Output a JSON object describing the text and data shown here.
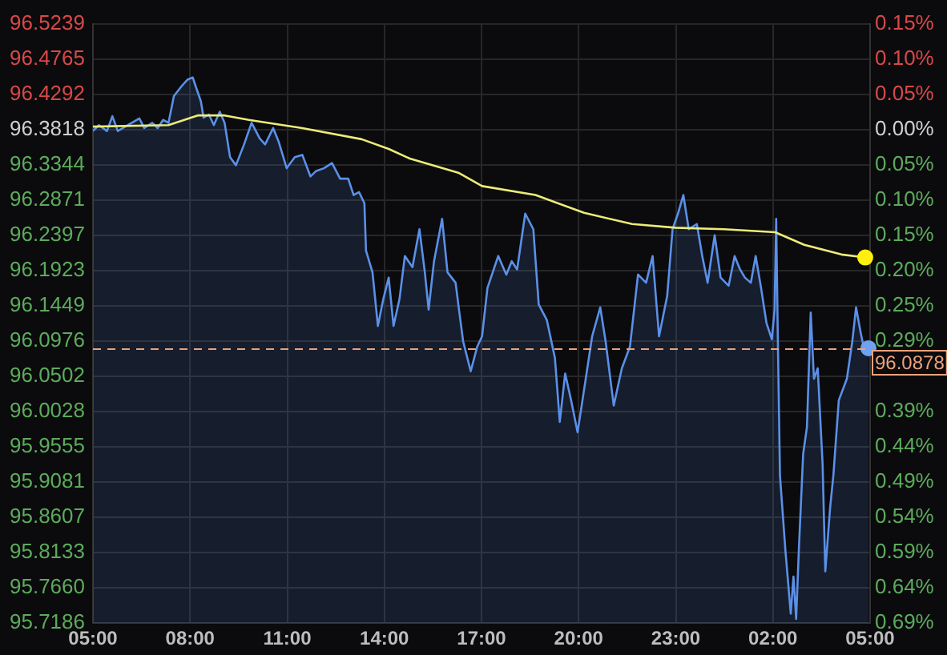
{
  "chart_data": {
    "type": "line",
    "series": [
      {
        "type": "area",
        "color": "#5b90e8",
        "x": [
          "--01-01T05:00",
          "--01-01T05:11",
          "--01-01T05:26",
          "--01-01T05:36",
          "--01-01T05:46",
          "--01-01T06:05",
          "--01-01T06:26",
          "--01-01T06:35",
          "--01-01T06:50",
          "--01-01T07:00",
          "--01-01T07:10",
          "--01-01T07:20",
          "--01-01T07:30",
          "--01-01T07:45",
          "--01-01T07:55",
          "--01-01T08:05",
          "--01-01T08:10",
          "--01-01T08:20",
          "--01-01T08:25",
          "--01-01T08:35",
          "--01-01T08:44",
          "--01-01T08:55",
          "--01-01T09:04",
          "--01-01T09:14",
          "--01-01T09:25",
          "--01-01T09:40",
          "--01-01T09:54",
          "--01-01T10:09",
          "--01-01T10:19",
          "--01-01T10:34",
          "--01-01T10:44",
          "--01-01T10:59",
          "--01-01T11:14",
          "--01-01T11:28",
          "--01-01T11:43",
          "--01-01T11:53",
          "--01-01T12:08",
          "--01-01T12:23",
          "--01-01T12:38",
          "--01-01T12:53",
          "--01-01T13:03",
          "--01-01T13:13",
          "--01-01T13:23",
          "--01-01T13:26",
          "--01-01T13:38",
          "--01-01T13:48",
          "--01-01T13:58",
          "--01-01T14:08",
          "--01-01T14:17",
          "--01-01T14:28",
          "--01-01T14:38",
          "--01-01T14:52",
          "--01-01T15:05",
          "--01-01T15:15",
          "--01-01T15:22",
          "--01-01T15:32",
          "--01-01T15:47",
          "--01-01T15:57",
          "--01-01T16:12",
          "--01-01T16:17",
          "--01-01T16:26",
          "--01-01T16:40",
          "--01-01T16:52",
          "--01-01T17:01",
          "--01-01T17:11",
          "--01-01T17:31",
          "--01-01T17:46",
          "--01-01T17:56",
          "--01-01T18:06",
          "--01-01T18:21",
          "--01-01T18:36",
          "--01-01T18:46",
          "--01-01T19:01",
          "--01-01T19:16",
          "--01-01T19:25",
          "--01-01T19:35",
          "--01-01T19:46",
          "--01-01T19:58",
          "--01-01T20:10",
          "--01-01T20:25",
          "--01-01T20:40",
          "--01-01T20:50",
          "--01-01T21:05",
          "--01-01T21:20",
          "--01-01T21:35",
          "--01-01T21:50",
          "--01-01T22:05",
          "--01-01T22:17",
          "--01-01T22:29",
          "--01-01T22:44",
          "--01-01T22:54",
          "--01-01T23:04",
          "--01-01T23:14",
          "--01-01T23:24",
          "--01-01T23:39",
          "--01-01T23:49",
          "--01-01T23:59",
          "--01-02T00:12",
          "--01-02T00:23",
          "--01-02T00:38",
          "--01-02T00:49",
          "--01-02T00:59",
          "--01-02T01:08",
          "--01-02T01:19",
          "--01-02T01:28",
          "--01-02T01:38",
          "--01-02T01:48",
          "--01-02T01:58",
          "--01-02T02:03",
          "--01-02T02:06",
          "--01-02T02:09",
          "--01-02T02:13",
          "--01-02T02:23",
          "--01-02T02:33",
          "--01-02T02:38",
          "--01-02T02:43",
          "--01-02T02:48",
          "--01-02T02:56",
          "--01-02T03:03",
          "--01-02T03:10",
          "--01-02T03:16",
          "--01-02T03:23",
          "--01-02T03:32",
          "--01-02T03:37",
          "--01-02T03:46",
          "--01-02T03:52",
          "--01-02T04:02",
          "--01-02T04:17",
          "--01-02T04:27",
          "--01-02T04:34",
          "--01-02T04:42",
          "--01-02T04:49",
          "--01-02T04:57"
        ],
        "values": [
          96.38,
          96.388,
          96.38,
          96.4,
          96.38,
          96.388,
          96.397,
          96.384,
          96.391,
          96.384,
          96.395,
          96.391,
          96.427,
          96.441,
          96.449,
          96.452,
          96.441,
          96.42,
          96.398,
          96.402,
          96.388,
          96.406,
          96.391,
          96.345,
          96.334,
          96.362,
          96.391,
          96.37,
          96.362,
          96.384,
          96.366,
          96.33,
          96.345,
          96.348,
          96.319,
          96.326,
          96.33,
          96.337,
          96.316,
          96.316,
          96.294,
          96.298,
          96.283,
          96.219,
          96.19,
          96.118,
          96.154,
          96.183,
          96.118,
          96.154,
          96.212,
          96.197,
          96.248,
          96.19,
          96.14,
          96.205,
          96.262,
          96.19,
          96.176,
          96.147,
          96.097,
          96.057,
          96.09,
          96.104,
          96.169,
          96.212,
          96.187,
          96.205,
          96.194,
          96.269,
          96.248,
          96.147,
          96.126,
          96.075,
          95.989,
          96.054,
          96.018,
          95.975,
          96.032,
          96.104,
          96.143,
          96.097,
          96.011,
          96.061,
          96.09,
          96.187,
          96.176,
          96.212,
          96.104,
          96.158,
          96.248,
          96.269,
          96.294,
          96.248,
          96.255,
          96.212,
          96.176,
          96.24,
          96.183,
          96.172,
          96.212,
          96.194,
          96.183,
          96.176,
          96.212,
          96.169,
          96.122,
          96.1,
          96.14,
          96.262,
          96.104,
          95.917,
          95.817,
          95.731,
          95.781,
          95.724,
          95.817,
          95.946,
          95.982,
          96.136,
          96.047,
          96.061,
          95.932,
          95.788,
          95.874,
          95.917,
          96.018,
          96.047,
          96.097,
          96.143,
          96.111,
          96.086,
          96.088
        ]
      },
      {
        "color": "#ecec78",
        "x": [
          "--01-01T05:00",
          "--01-01T07:20",
          "--01-01T08:14",
          "--01-01T09:04",
          "--01-01T09:49",
          "--01-01T11:28",
          "--01-01T13:18",
          "--01-01T14:08",
          "--01-01T14:47",
          "--01-01T16:17",
          "--01-01T17:01",
          "--01-01T18:40",
          "--01-01T20:10",
          "--01-01T21:39",
          "--01-01T22:59",
          "--01-02T00:29",
          "--01-02T02:04",
          "--01-02T02:58",
          "--01-02T04:07",
          "--01-02T04:51"
        ],
        "values": [
          96.386,
          96.388,
          96.401,
          96.401,
          96.395,
          96.384,
          96.369,
          96.356,
          96.343,
          96.324,
          96.306,
          96.294,
          96.27,
          96.255,
          96.25,
          96.248,
          96.244,
          96.227,
          96.214,
          96.21
        ]
      },
      {
        "type": "scatter",
        "color": "#ffee10",
        "marker": "circle",
        "x": [
          "--01-02T04:51"
        ],
        "values": [
          96.21
        ]
      },
      {
        "type": "scatter",
        "color": "#6ea2f2",
        "marker": "circle",
        "x": [
          "--01-02T04:57"
        ],
        "values": [
          96.088
        ]
      }
    ],
    "xlim": [
      "--01-01T05:00",
      "--01-02T05:00"
    ],
    "xticks": [
      {
        "value": "--01-01T05:00",
        "label": "05:00"
      },
      {
        "value": "--01-01T08:00",
        "label": "08:00"
      },
      {
        "value": "--01-01T11:00",
        "label": "11:00"
      },
      {
        "value": "--01-01T14:00",
        "label": "14:00"
      },
      {
        "value": "--01-01T17:00",
        "label": "17:00"
      },
      {
        "value": "--01-01T20:00",
        "label": "20:00"
      },
      {
        "value": "--01-01T23:00",
        "label": "23:00"
      },
      {
        "value": "--01-02T02:00",
        "label": "02:00"
      },
      {
        "value": "--01-02T05:00",
        "label": "05:00"
      }
    ],
    "ylim": [
      95.7186,
      96.5239
    ],
    "yticks": [
      96.5239,
      96.4765,
      96.4292,
      96.3818,
      96.3344,
      96.2871,
      96.2397,
      96.1923,
      96.1449,
      96.0976,
      96.0502,
      96.0028,
      95.9555,
      95.9081,
      95.8607,
      95.8133,
      {
        "value": 95.766,
        "label": "95.7660"
      },
      95.7186
    ],
    "y2lim": [
      -0.6881,
      0.1474
    ],
    "y2ticks": [
      {
        "value": 0.1474,
        "label": "0.15%"
      },
      {
        "value": 0.0983,
        "label": "0.10%"
      },
      {
        "value": 0.0492,
        "label": "0.05%"
      },
      {
        "value": 0,
        "label": "0.00%"
      },
      {
        "value": -0.0492,
        "label": "0.05%"
      },
      {
        "value": -0.0983,
        "label": "0.10%"
      },
      {
        "value": -0.1474,
        "label": "0.15%"
      },
      {
        "value": -0.1966,
        "label": "0.20%"
      },
      {
        "value": -0.2458,
        "label": "0.25%"
      },
      {
        "value": -0.2949,
        "label": "0.29%"
      },
      {
        "value": -0.344,
        "label": null
      },
      {
        "value": -0.3932,
        "label": "0.39%"
      },
      {
        "value": -0.4423,
        "label": "0.44%"
      },
      {
        "value": -0.4915,
        "label": "0.49%"
      },
      {
        "value": -0.5407,
        "label": "0.54%"
      },
      {
        "value": -0.5898,
        "label": "0.59%"
      },
      {
        "value": -0.6389,
        "label": "0.64%"
      },
      {
        "value": -0.6881,
        "label": "0.69%"
      }
    ],
    "ref_lines": [
      {
        "axis": "y",
        "value": 96.0878,
        "label": "96.0878",
        "color": "#eba27a",
        "line_style": "dashed"
      }
    ],
    "grid": true
  }
}
